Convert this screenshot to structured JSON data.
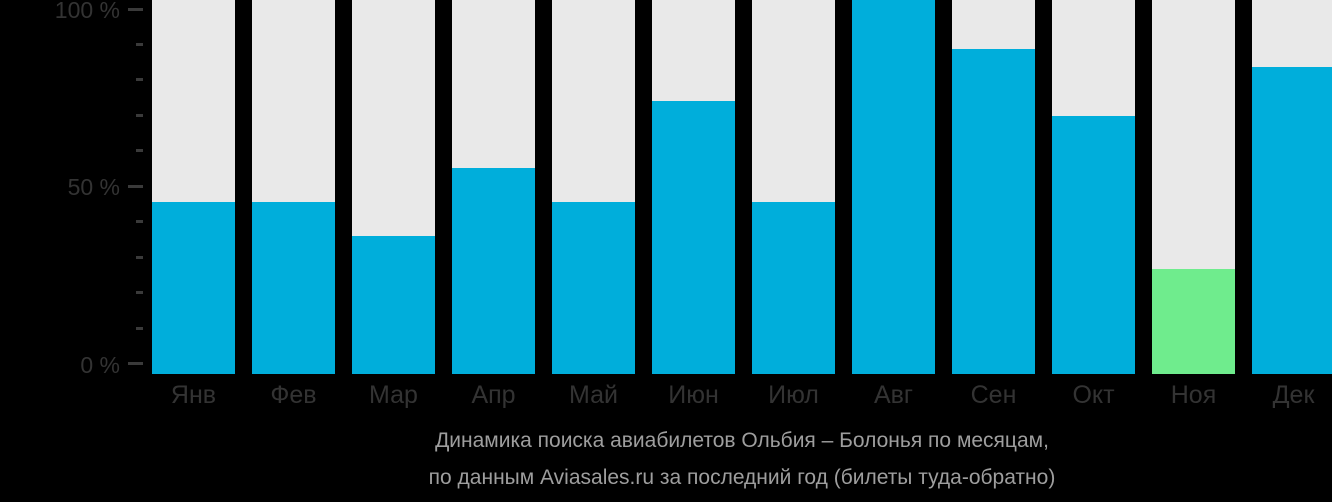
{
  "chart_data": {
    "type": "bar",
    "title": "Динамика поиска авиабилетов Ольбия – Болонья по месяцам, по данным Aviasales.ru за последний год (билеты туда-обратно)",
    "title_line1": "Динамика поиска авиабилетов Ольбия – Болонья по месяцам,",
    "title_line2": "по данным Aviasales.ru за последний год (билеты туда-обратно)",
    "categories": [
      "Янв",
      "Фев",
      "Мар",
      "Апр",
      "Май",
      "Июн",
      "Июл",
      "Авг",
      "Сен",
      "Окт",
      "Ноя",
      "Дек"
    ],
    "values": [
      46,
      46,
      37,
      55,
      46,
      73,
      46,
      100,
      87,
      69,
      28,
      82
    ],
    "unit": "%",
    "ylim": [
      0,
      100
    ],
    "yticks_major": [
      {
        "value": 100,
        "label": "100 %"
      },
      {
        "value": 50,
        "label": "50 %"
      },
      {
        "value": 0,
        "label": "0 %"
      }
    ],
    "yticks_minor": [
      10,
      20,
      30,
      40,
      60,
      70,
      80,
      90
    ],
    "highlight": {
      "index": 10,
      "category": "Ноя",
      "color": "#6FEC8D"
    },
    "colors": {
      "bar": "#00AEDB",
      "track": "#E9E9E9",
      "background": "#000000",
      "axis_text": "#333333",
      "title_text": "#9E9E9E"
    },
    "legend": null,
    "grid": "off",
    "xlabel": "",
    "ylabel": ""
  }
}
